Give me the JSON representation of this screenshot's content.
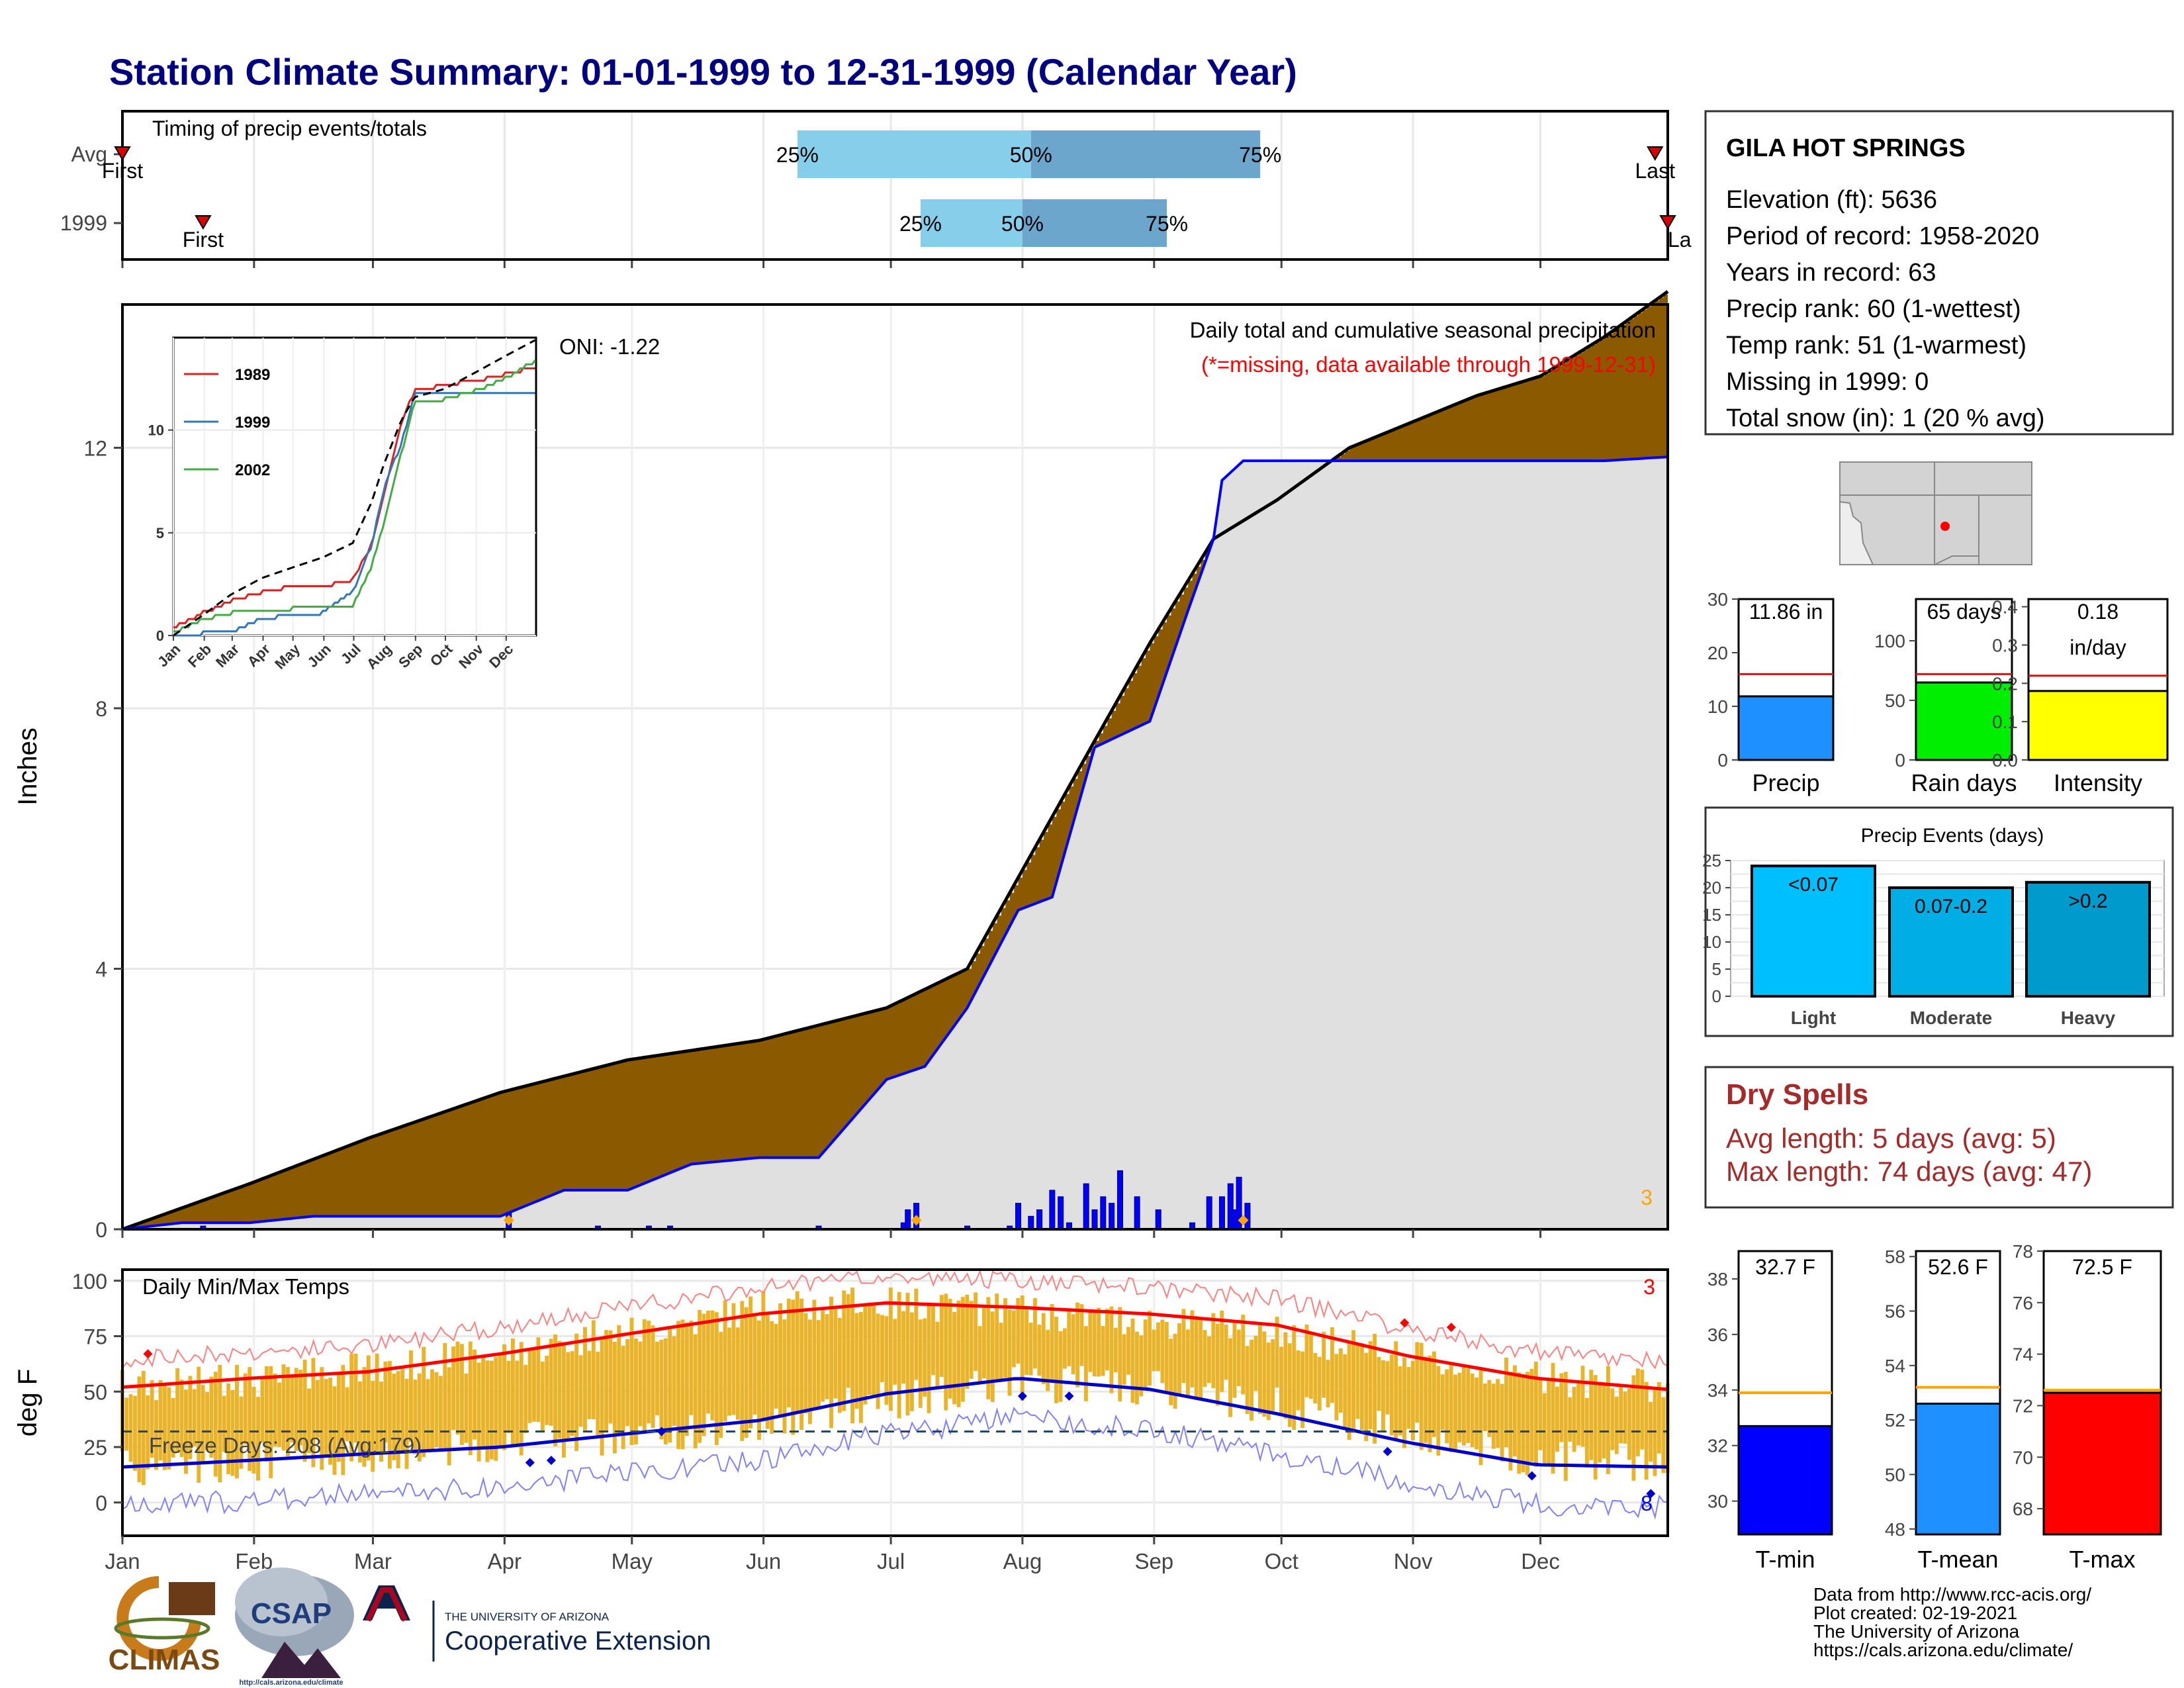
{
  "title": "Station Climate Summary: 01-01-1999 to 12-31-1999 (Calendar Year)",
  "colors": {
    "title": "#000080",
    "avg_line": "#ff0000",
    "precip_bar": "#1e90ff",
    "rain_bar": "#00ee00",
    "intensity_bar": "#ffff00",
    "tmin_bar": "#0000ff",
    "tmean_bar": "#1e90ff",
    "tmax_bar": "#ff0000",
    "temp_avg_line": "#ffa500",
    "dry_spells": "#a52a2a",
    "deficit_fill": "#8b5a00",
    "surplus_fill": "#008000",
    "cumulative_fill": "#e0e0e0",
    "cumulative_line": "#0000ff",
    "temp_bars": "#eab42a",
    "timing_light": "#87ceeb",
    "timing_dark": "#6ca6cd"
  },
  "months": [
    "Jan",
    "Feb",
    "Mar",
    "Apr",
    "May",
    "Jun",
    "Jul",
    "Aug",
    "Sep",
    "Oct",
    "Nov",
    "Dec"
  ],
  "timing": {
    "title": "Timing of precip events/totals",
    "rows": [
      {
        "label": "Avg",
        "first_label": "First",
        "last_label": "Last",
        "first_day": 1,
        "last_day": 362,
        "p25_label": "25%",
        "p50_label": "50%",
        "p75_label": "75%",
        "p25_day": 160,
        "p50_day": 215,
        "p75_day": 269
      },
      {
        "label": "1999",
        "first_label": "First",
        "last_label": "La",
        "first_day": 20,
        "last_day": 365,
        "p25_label": "25%",
        "p50_label": "50%",
        "p75_label": "75%",
        "p25_day": 189,
        "p50_day": 213,
        "p75_day": 247
      }
    ]
  },
  "station": {
    "name": "GILA HOT SPRINGS",
    "lines": [
      "Elevation (ft): 5636",
      "Period of record: 1958-2020",
      "Years in record: 63",
      "Precip rank: 60 (1-wettest)",
      "Temp rank: 51 (1-warmest)",
      "Missing in 1999: 0",
      "Total snow (in): 1 (20 % avg)"
    ]
  },
  "main_precip": {
    "ylabel": "Inches",
    "yticks": [
      "0",
      "4",
      "8",
      "12"
    ],
    "oni": "ONI: -1.22",
    "header": "Daily total and cumulative seasonal precipitation",
    "missing_note": "(*=missing, data available through 1999-12-31)",
    "corner_count": "3"
  },
  "inset": {
    "yticks": [
      "0",
      "5",
      "10"
    ],
    "legend": [
      {
        "name": "1989",
        "color": "#dd2222"
      },
      {
        "name": "1999",
        "color": "#3377bb"
      },
      {
        "name": "2002",
        "color": "#44aa44"
      }
    ]
  },
  "temps": {
    "title": "Daily Min/Max Temps",
    "ylabel": "deg F",
    "yticks": [
      "0",
      "25",
      "50",
      "75",
      "100"
    ],
    "freeze_text": "Freeze Days: 208 (Avg:179)",
    "count_top": "3",
    "count_bottom": "8"
  },
  "mini_bars": [
    {
      "label": "Precip",
      "value_text": "11.86 in",
      "value": 11.86,
      "avg": 16.0,
      "ymax": 30,
      "ticks": [
        "0",
        "10",
        "20",
        "30"
      ],
      "color": "#1e90ff"
    },
    {
      "label": "Rain days",
      "value_text": "65 days",
      "value": 65,
      "avg": 72,
      "ymax": 135,
      "ticks": [
        "0",
        "50",
        "100"
      ],
      "color": "#00ee00"
    },
    {
      "label": "Intensity",
      "value_text": "0.18\nin/day",
      "value": 0.18,
      "avg": 0.22,
      "ymax": 0.42,
      "ticks": [
        "0.0",
        "0.1",
        "0.2",
        "0.3",
        "0.4"
      ],
      "color": "#ffff00"
    }
  ],
  "events": {
    "title": "Precip Events (days)",
    "yticks": [
      "0",
      "5",
      "10",
      "15",
      "20",
      "25"
    ],
    "bars": [
      {
        "label": "Light",
        "value_label": "<0.07",
        "value": 24,
        "color": "#00bfff"
      },
      {
        "label": "Moderate",
        "value_label": "0.07-0.2",
        "value": 20,
        "color": "#00aee6"
      },
      {
        "label": "Heavy",
        "value_label": ">0.2",
        "value": 21,
        "color": "#009acd"
      }
    ]
  },
  "dry_spells": {
    "title": "Dry Spells",
    "avg": "Avg length: 5 days (avg: 5)",
    "max": "Max length: 74 days (avg: 47)"
  },
  "temp_bars": [
    {
      "label": "T-min",
      "value_text": "32.7 F",
      "value": 32.7,
      "avg": 33.9,
      "ymin": 28.8,
      "ymax": 39.0,
      "ticks": [
        "30",
        "32",
        "34",
        "36",
        "38"
      ],
      "color": "#0000ff"
    },
    {
      "label": "T-mean",
      "value_text": "52.6 F",
      "value": 52.6,
      "avg": 53.2,
      "ymin": 47.8,
      "ymax": 58.2,
      "ticks": [
        "48",
        "50",
        "52",
        "54",
        "56",
        "58"
      ],
      "color": "#1e90ff"
    },
    {
      "label": "T-max",
      "value_text": "72.5 F",
      "value": 72.5,
      "avg": 72.6,
      "ymin": 67.0,
      "ymax": 78.0,
      "ticks": [
        "68",
        "70",
        "72",
        "74",
        "76",
        "78"
      ],
      "color": "#ff0000"
    }
  ],
  "footer": {
    "lines": [
      "Data from http://www.rcc-acis.org/",
      "Plot created: 02-19-2021",
      "The University of Arizona",
      "https://cals.arizona.edu/climate/"
    ],
    "logo_climas": "CLIMAS",
    "logo_csap": "CSAP",
    "logo_csap_url": "http://cals.arizona.edu/climate",
    "logo_ua_top": "THE UNIVERSITY OF ARIZONA",
    "logo_ua_bottom": "Cooperative Extension"
  },
  "chart_data": [
    {
      "type": "line",
      "title": "Daily total and cumulative seasonal precipitation",
      "ylabel": "Inches",
      "ylim": [
        0,
        14.2
      ],
      "x_units": "day of year",
      "series": [
        {
          "name": "",
          "x": [
            1,
            15,
            31,
            46,
            59,
            75,
            90,
            105,
            120,
            135,
            151,
            165,
            181,
            190,
            200,
            212,
            220,
            230,
            243,
            252,
            258,
            260,
            265,
            273,
            285,
            295,
            305,
            320,
            335,
            350,
            365
          ],
          "values": [
            0.0,
            0.1,
            0.1,
            0.2,
            0.2,
            0.2,
            0.2,
            0.6,
            0.6,
            1.0,
            1.1,
            1.1,
            2.3,
            2.5,
            3.4,
            4.9,
            5.1,
            7.4,
            7.8,
            9.5,
            10.6,
            11.5,
            11.8,
            11.8,
            11.8,
            11.8,
            11.8,
            11.8,
            11.8,
            11.8,
            11.86
          ]
        },
        {
          "name": "",
          "x": [
            1,
            31,
            59,
            90,
            120,
            151,
            181,
            200,
            212,
            230,
            243,
            258,
            273,
            290,
            305,
            320,
            335,
            350,
            365
          ],
          "values": [
            0.0,
            0.7,
            1.4,
            2.1,
            2.6,
            2.9,
            3.4,
            4.0,
            5.4,
            7.5,
            9.0,
            10.6,
            11.2,
            12.0,
            12.4,
            12.8,
            13.1,
            13.7,
            14.4
          ]
        }
      ]
    },
    {
      "type": "bar",
      "title": "",
      "x_units": "day of year",
      "x": [
        20,
        92,
        113,
        125,
        130,
        165,
        185,
        186,
        188,
        200,
        210,
        212,
        215,
        217,
        220,
        222,
        224,
        228,
        230,
        232,
        234,
        236,
        240,
        245,
        253,
        257,
        260,
        262,
        263,
        264,
        266
      ],
      "values": [
        0.05,
        0.25,
        0.05,
        0.05,
        0.05,
        0.05,
        0.1,
        0.3,
        0.4,
        0.05,
        0.05,
        0.4,
        0.2,
        0.3,
        0.6,
        0.5,
        0.1,
        0.7,
        0.3,
        0.5,
        0.4,
        0.9,
        0.5,
        0.3,
        0.1,
        0.5,
        0.5,
        0.7,
        0.3,
        0.8,
        0.4
      ]
    },
    {
      "type": "line",
      "title": "",
      "xlabel": "",
      "ylim": [
        0,
        14.5
      ],
      "series": [
        {
          "name": "1989",
          "x": [
            1,
            31,
            59,
            90,
            120,
            151,
            181,
            200,
            212,
            230,
            243,
            273,
            304,
            334,
            365
          ],
          "values": [
            0.5,
            1.2,
            1.8,
            2.2,
            2.5,
            2.5,
            2.8,
            4.5,
            7.0,
            10.5,
            12.0,
            12.3,
            12.5,
            12.8,
            13.2
          ]
        },
        {
          "name": "1999",
          "x": [
            1,
            31,
            59,
            90,
            120,
            151,
            181,
            200,
            212,
            230,
            243,
            273,
            304,
            334,
            365
          ],
          "values": [
            0.0,
            0.2,
            0.3,
            0.9,
            1.1,
            1.2,
            2.2,
            4.5,
            7.2,
            9.5,
            11.8,
            11.8,
            11.8,
            11.8,
            11.9
          ]
        },
        {
          "name": "2002",
          "x": [
            1,
            31,
            59,
            90,
            120,
            151,
            181,
            200,
            212,
            230,
            243,
            273,
            304,
            334,
            365
          ],
          "values": [
            0.2,
            0.9,
            1.2,
            1.3,
            1.4,
            1.4,
            1.5,
            3.5,
            5.5,
            9.0,
            11.4,
            11.6,
            12.0,
            12.6,
            13.5
          ]
        },
        {
          "name": "",
          "x": [
            1,
            31,
            59,
            90,
            120,
            151,
            181,
            200,
            212,
            230,
            243,
            273,
            304,
            334,
            365
          ],
          "values": [
            0.0,
            1.0,
            2.0,
            2.8,
            3.3,
            3.8,
            4.5,
            6.5,
            8.3,
            10.5,
            11.6,
            12.0,
            12.8,
            13.6,
            14.4
          ]
        }
      ]
    },
    {
      "type": "area",
      "title": "Daily Min/Max Temps",
      "ylabel": "deg F",
      "ylim": [
        -15,
        105
      ],
      "x_units": "day of year",
      "series": [
        {
          "name": "",
          "x": [
            1,
            31,
            59,
            90,
            120,
            151,
            181,
            212,
            243,
            273,
            304,
            334,
            365
          ],
          "values": [
            16,
            18,
            22,
            27,
            30,
            36,
            46,
            54,
            52,
            43,
            32,
            19,
            17
          ]
        },
        {
          "name": "",
          "x": [
            1,
            31,
            59,
            90,
            120,
            151,
            181,
            212,
            243,
            273,
            304,
            334,
            365
          ],
          "values": [
            53,
            55,
            60,
            68,
            77,
            88,
            90,
            86,
            83,
            76,
            66,
            56,
            53
          ]
        },
        {
          "name": "",
          "x": [
            1,
            31,
            59,
            90,
            120,
            151,
            181,
            212,
            243,
            273,
            304,
            334,
            365
          ],
          "values": [
            16,
            19,
            22,
            25,
            31,
            37,
            49,
            56,
            51,
            40,
            27,
            17,
            16
          ]
        },
        {
          "name": "",
          "x": [
            1,
            31,
            59,
            90,
            120,
            151,
            181,
            212,
            243,
            273,
            304,
            334,
            365
          ],
          "values": [
            52,
            56,
            59,
            67,
            76,
            85,
            90,
            88,
            85,
            80,
            66,
            56,
            51
          ]
        }
      ]
    }
  ]
}
